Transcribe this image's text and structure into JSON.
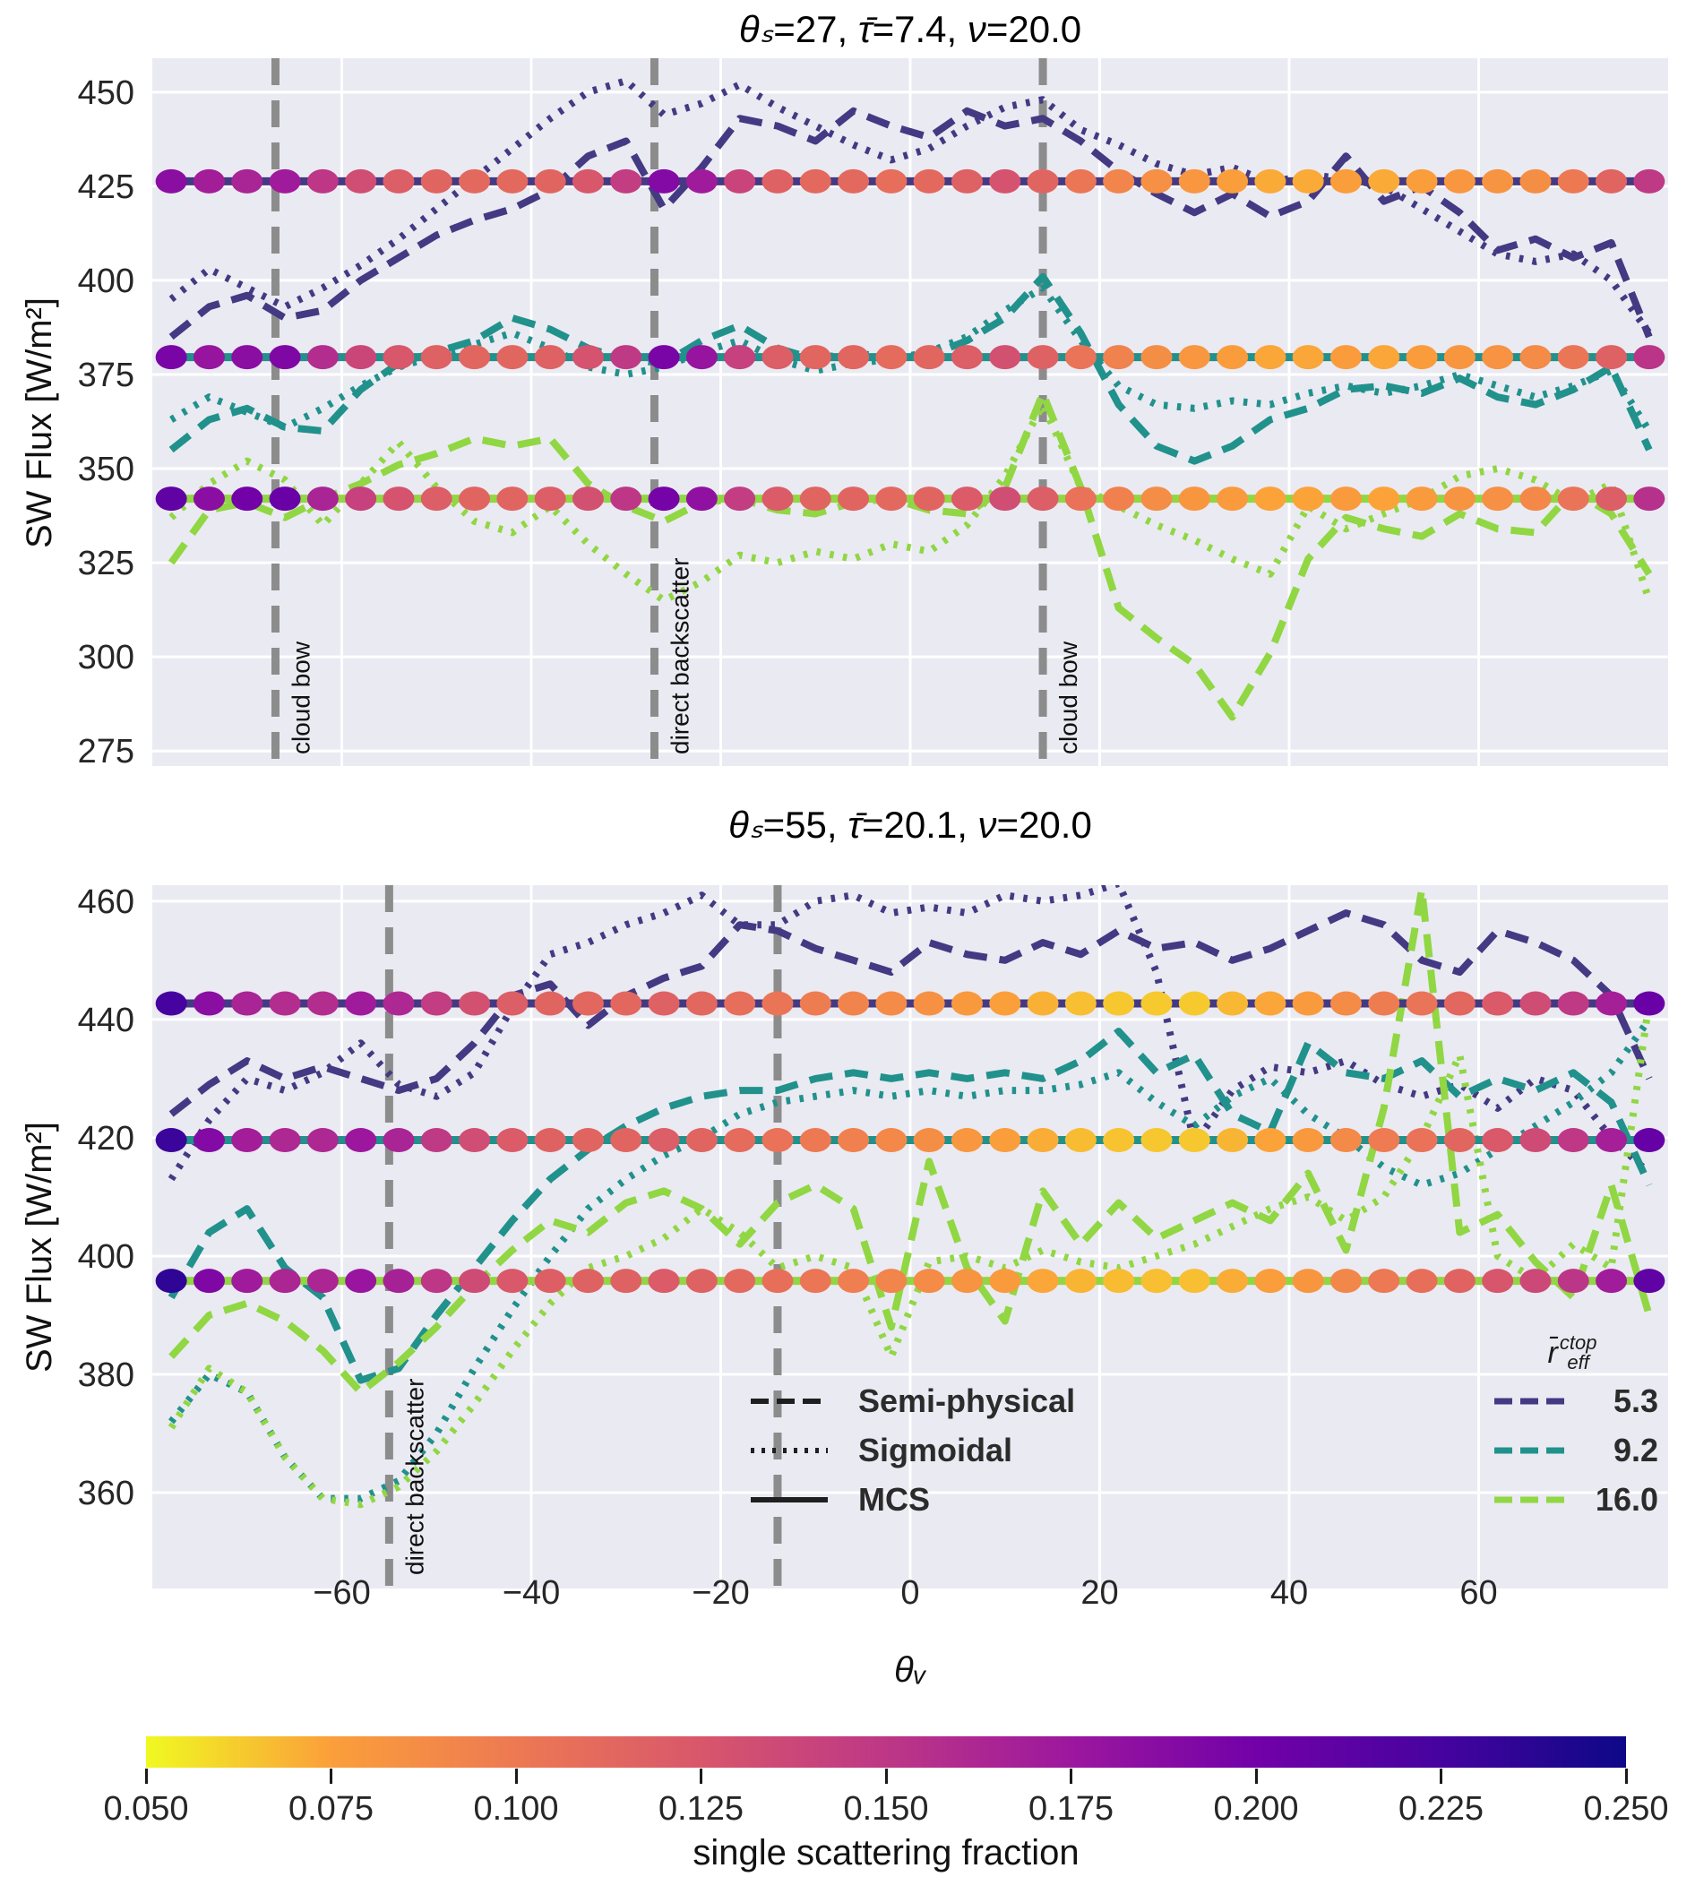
{
  "chart_data": {
    "type": "line",
    "xlabel": "θᵥ",
    "xlim": [
      -80,
      80
    ],
    "x_ticks": [
      -60,
      -40,
      -20,
      0,
      20,
      40,
      60
    ],
    "background": "#eaeaf2",
    "grid_color": "#ffffff",
    "vline_color": "#8c8c8c",
    "reff_colors": {
      "5.3": "#443983",
      "9.2": "#21918c",
      "16.0": "#90d743"
    },
    "x": [
      -78,
      -74,
      -70,
      -66,
      -62,
      -58,
      -54,
      -50,
      -46,
      -42,
      -38,
      -34,
      -30,
      -26,
      -22,
      -18,
      -14,
      -10,
      -6,
      -2,
      2,
      6,
      10,
      14,
      18,
      22,
      26,
      30,
      34,
      38,
      42,
      46,
      50,
      54,
      58,
      62,
      66,
      70,
      74,
      78
    ],
    "panels": [
      {
        "title": "θₛ=27, τ̄=7.4, ν=20.0",
        "title_parts": [
          [
            "θₛ",
            "=27, "
          ],
          [
            "τ̄",
            "=7.4, "
          ],
          [
            "ν",
            "=20.0"
          ]
        ],
        "ylabel": "SW Flux [W/m²]",
        "ylim": [
          271,
          459
        ],
        "yticks": [
          275,
          300,
          325,
          350,
          375,
          400,
          425,
          450
        ],
        "show_x_tick_labels": false,
        "vlines": [
          {
            "x": -67,
            "label": "cloud bow"
          },
          {
            "x": -27,
            "label": "direct backscatter"
          },
          {
            "x": 14,
            "label": "cloud bow"
          }
        ],
        "mcs": {
          "5.3": 426.3,
          "9.2": 379.6,
          "16.0": 342.0
        },
        "series": {
          "5.3": {
            "Semi-physical": [
              385,
              393,
              396,
              390,
              392,
              400,
              406,
              412,
              416,
              419,
              424,
              433,
              437,
              419,
              430,
              443,
              441,
              437,
              445,
              441,
              438,
              445,
              441,
              443,
              437,
              429,
              423,
              418,
              423,
              417,
              421,
              433,
              421,
              425,
              418,
              408,
              411,
              406,
              410,
              385
            ],
            "Sigmoidal": [
              395,
              403,
              398,
              393,
              398,
              404,
              411,
              419,
              427,
              435,
              443,
              450,
              453,
              444,
              447,
              452,
              446,
              441,
              436,
              432,
              435,
              441,
              446,
              448,
              440,
              436,
              431,
              428,
              430,
              426,
              428,
              427,
              425,
              419,
              413,
              407,
              405,
              407,
              400,
              386
            ]
          },
          "9.2": {
            "Semi-physical": [
              355,
              363,
              366,
              361,
              360,
              371,
              378,
              381,
              384,
              390,
              387,
              382,
              379,
              378,
              384,
              388,
              382,
              379,
              381,
              379,
              380,
              384,
              390,
              401,
              386,
              367,
              356,
              352,
              356,
              363,
              366,
              371,
              372,
              370,
              374,
              369,
              367,
              371,
              377,
              355
            ],
            "Sigmoidal": [
              363,
              369,
              365,
              361,
              366,
              372,
              377,
              380,
              383,
              386,
              382,
              377,
              375,
              377,
              381,
              384,
              379,
              376,
              378,
              379,
              381,
              385,
              392,
              398,
              384,
              372,
              367,
              366,
              368,
              367,
              370,
              372,
              370,
              372,
              375,
              372,
              369,
              372,
              376,
              360
            ]
          },
          "16.0": {
            "Semi-physical": [
              325,
              339,
              341,
              337,
              342,
              346,
              351,
              354,
              358,
              356,
              358,
              346,
              340,
              336,
              341,
              342,
              339,
              338,
              341,
              342,
              339,
              338,
              345,
              370,
              345,
              313,
              305,
              298,
              284,
              301,
              326,
              337,
              334,
              332,
              338,
              334,
              333,
              344,
              338,
              322
            ],
            "Sigmoidal": [
              337,
              346,
              352,
              347,
              335,
              346,
              357,
              345,
              336,
              333,
              340,
              330,
              322,
              315,
              320,
              327,
              325,
              328,
              326,
              330,
              328,
              335,
              348,
              367,
              345,
              340,
              335,
              331,
              326,
              322,
              340,
              334,
              338,
              342,
              348,
              350,
              347,
              341,
              346,
              315
            ]
          }
        },
        "scatter_ssf": {
          "5.3": [
            0.185,
            0.17,
            0.165,
            0.172,
            0.15,
            0.132,
            0.12,
            0.115,
            0.112,
            0.112,
            0.115,
            0.125,
            0.145,
            0.19,
            0.172,
            0.14,
            0.118,
            0.112,
            0.112,
            0.108,
            0.112,
            0.118,
            0.128,
            0.115,
            0.102,
            0.092,
            0.085,
            0.08,
            0.076,
            0.072,
            0.072,
            0.076,
            0.072,
            0.076,
            0.08,
            0.082,
            0.086,
            0.1,
            0.115,
            0.148
          ],
          "9.2": [
            0.195,
            0.178,
            0.185,
            0.192,
            0.158,
            0.138,
            0.125,
            0.118,
            0.114,
            0.114,
            0.118,
            0.128,
            0.148,
            0.195,
            0.178,
            0.142,
            0.12,
            0.114,
            0.114,
            0.11,
            0.114,
            0.12,
            0.13,
            0.118,
            0.104,
            0.094,
            0.086,
            0.08,
            0.077,
            0.073,
            0.073,
            0.077,
            0.073,
            0.077,
            0.081,
            0.083,
            0.088,
            0.102,
            0.118,
            0.152
          ],
          "16.0": [
            0.21,
            0.185,
            0.2,
            0.205,
            0.165,
            0.142,
            0.128,
            0.12,
            0.115,
            0.115,
            0.12,
            0.13,
            0.15,
            0.198,
            0.182,
            0.145,
            0.122,
            0.115,
            0.115,
            0.112,
            0.115,
            0.122,
            0.132,
            0.12,
            0.105,
            0.095,
            0.087,
            0.081,
            0.078,
            0.074,
            0.074,
            0.078,
            0.074,
            0.078,
            0.082,
            0.085,
            0.09,
            0.104,
            0.12,
            0.155
          ]
        }
      },
      {
        "title": "θₛ=55, τ̄=20.1, ν=20.0",
        "title_parts": [
          [
            "θₛ",
            "=55, "
          ],
          [
            "τ̄",
            "=20.1, "
          ],
          [
            "ν",
            "=20.0"
          ]
        ],
        "ylabel": "SW Flux [W/m²]",
        "ylim": [
          343.8,
          462.7
        ],
        "yticks": [
          360,
          380,
          400,
          420,
          440,
          460
        ],
        "show_x_tick_labels": true,
        "vlines": [
          {
            "x": -55,
            "label": "direct backscatter"
          },
          {
            "x": -14,
            "label": ""
          }
        ],
        "mcs": {
          "5.3": 442.7,
          "9.2": 419.6,
          "16.0": 395.8
        },
        "series": {
          "5.3": {
            "Semi-physical": [
              424,
              429,
              433,
              430,
              432,
              430,
              428,
              430,
              436,
              444,
              446,
              439,
              444,
              447,
              449,
              456,
              455,
              452,
              450,
              448,
              453,
              451,
              450,
              453,
              451,
              455,
              452,
              453,
              450,
              452,
              455,
              458,
              456,
              450,
              448,
              455,
              453,
              450,
              444,
              430
            ],
            "Sigmoidal": [
              413,
              423,
              430,
              428,
              431,
              436,
              429,
              427,
              431,
              442,
              451,
              453,
              456,
              458,
              461,
              456,
              456,
              460,
              461,
              458,
              459,
              458,
              461,
              460,
              461,
              463,
              448,
              419,
              428,
              432,
              431,
              433,
              429,
              427,
              429,
              425,
              430,
              428,
              420,
              414
            ]
          },
          "9.2": {
            "Semi-physical": [
              393,
              404,
              408,
              398,
              393,
              379,
              381,
              390,
              398,
              406,
              413,
              418,
              422,
              425,
              427,
              428,
              428,
              430,
              431,
              430,
              431,
              430,
              431,
              430,
              433,
              438,
              431,
              434,
              424,
              421,
              436,
              431,
              430,
              433,
              427,
              430,
              428,
              431,
              426,
              412
            ],
            "Sigmoidal": [
              372,
              380,
              377,
              366,
              359,
              359,
              362,
              370,
              381,
              391,
              400,
              408,
              413,
              417,
              420,
              424,
              426,
              427,
              428,
              427,
              428,
              427,
              428,
              428,
              429,
              431,
              426,
              422,
              427,
              430,
              424,
              420,
              415,
              412,
              414,
              418,
              422,
              426,
              431,
              440
            ]
          },
          "16.0": {
            "Semi-physical": [
              383,
              390,
              392,
              389,
              384,
              377,
              382,
              388,
              395,
              401,
              406,
              404,
              409,
              411,
              408,
              402,
              409,
              412,
              408,
              388,
              416,
              398,
              389,
              411,
              402,
              409,
              403,
              406,
              409,
              406,
              414,
              401,
              425,
              462,
              404,
              407,
              399,
              393,
              412,
              390
            ],
            "Sigmoidal": [
              371,
              381,
              377,
              366,
              359,
              358,
              361,
              367,
              375,
              384,
              392,
              398,
              400,
              403,
              408,
              404,
              398,
              400,
              398,
              383,
              399,
              400,
              398,
              401,
              399,
              398,
              400,
              402,
              405,
              408,
              410,
              406,
              410,
              420,
              434,
              400,
              396,
              402,
              398,
              443
            ]
          }
        },
        "scatter_ssf": {
          "5.3": [
            0.225,
            0.185,
            0.165,
            0.158,
            0.158,
            0.172,
            0.162,
            0.145,
            0.13,
            0.12,
            0.115,
            0.113,
            0.113,
            0.118,
            0.113,
            0.108,
            0.103,
            0.098,
            0.093,
            0.088,
            0.084,
            0.079,
            0.075,
            0.07,
            0.066,
            0.064,
            0.063,
            0.063,
            0.068,
            0.073,
            0.078,
            0.088,
            0.098,
            0.104,
            0.113,
            0.123,
            0.133,
            0.148,
            0.168,
            0.205
          ],
          "9.2": [
            0.23,
            0.19,
            0.17,
            0.162,
            0.162,
            0.175,
            0.165,
            0.148,
            0.132,
            0.122,
            0.117,
            0.115,
            0.115,
            0.12,
            0.115,
            0.11,
            0.105,
            0.1,
            0.095,
            0.09,
            0.086,
            0.08,
            0.076,
            0.071,
            0.067,
            0.065,
            0.064,
            0.064,
            0.069,
            0.074,
            0.079,
            0.089,
            0.099,
            0.105,
            0.114,
            0.124,
            0.134,
            0.149,
            0.169,
            0.207
          ],
          "16.0": [
            0.235,
            0.192,
            0.172,
            0.164,
            0.164,
            0.177,
            0.167,
            0.15,
            0.134,
            0.124,
            0.119,
            0.117,
            0.117,
            0.122,
            0.117,
            0.112,
            0.107,
            0.102,
            0.097,
            0.092,
            0.088,
            0.082,
            0.078,
            0.073,
            0.069,
            0.067,
            0.066,
            0.066,
            0.071,
            0.076,
            0.081,
            0.091,
            0.101,
            0.107,
            0.116,
            0.126,
            0.136,
            0.151,
            0.171,
            0.21
          ]
        }
      }
    ],
    "style_legend": {
      "items": [
        {
          "label": "Semi-physical",
          "style": "dashed"
        },
        {
          "label": "Sigmoidal",
          "style": "dotted"
        },
        {
          "label": "MCS",
          "style": "solid"
        }
      ]
    },
    "reff_legend": {
      "title_base": "r̄",
      "title_sup": "ctop",
      "title_sub": "eff",
      "items": [
        {
          "label": "5.3"
        },
        {
          "label": "9.2"
        },
        {
          "label": "16.0"
        }
      ]
    },
    "colorbar": {
      "label": "single scattering fraction",
      "vmin": 0.05,
      "vmax": 0.25,
      "tick_labels": [
        "0.050",
        "0.075",
        "0.100",
        "0.125",
        "0.150",
        "0.175",
        "0.200",
        "0.225",
        "0.250"
      ],
      "plasma_anchors": [
        "#0d0887",
        "#46039f",
        "#7201a8",
        "#9c179e",
        "#bd3786",
        "#d8576b",
        "#ed7953",
        "#fb9f3a",
        "#f0f921"
      ]
    }
  }
}
